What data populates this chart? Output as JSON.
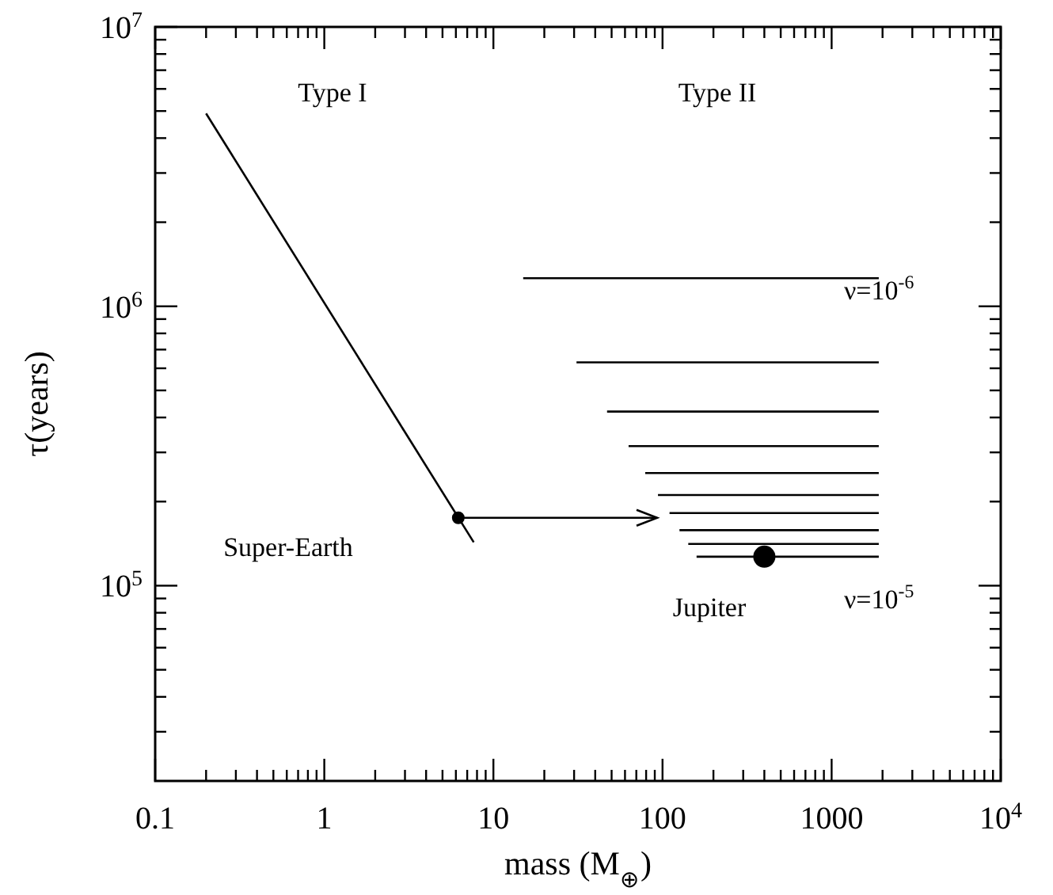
{
  "chart_data": {
    "type": "line",
    "xlabel": "mass (M$_{⊕}$)",
    "ylabel": "τ(years)",
    "log": "xy",
    "grid": false,
    "line_style": "solid",
    "xlim": [
      0.1,
      10000
    ],
    "ylim": [
      20000,
      10000000
    ],
    "xticks": [
      0.1,
      {
        "value": 0.2,
        "label": null
      },
      {
        "value": 0.3,
        "label": null
      },
      {
        "value": 0.4,
        "label": null
      },
      {
        "value": 0.5,
        "label": null
      },
      {
        "value": 0.6,
        "label": null
      },
      {
        "value": 0.7,
        "label": null
      },
      {
        "value": 0.8,
        "label": null
      },
      {
        "value": 0.9,
        "label": null
      },
      1,
      {
        "value": 2,
        "label": null
      },
      {
        "value": 3,
        "label": null
      },
      {
        "value": 4,
        "label": null
      },
      {
        "value": 5,
        "label": null
      },
      {
        "value": 6,
        "label": null
      },
      {
        "value": 7,
        "label": null
      },
      {
        "value": 8,
        "label": null
      },
      {
        "value": 9,
        "label": null
      },
      10,
      {
        "value": 20,
        "label": null
      },
      {
        "value": 30,
        "label": null
      },
      {
        "value": 40,
        "label": null
      },
      {
        "value": 50,
        "label": null
      },
      {
        "value": 60,
        "label": null
      },
      {
        "value": 70,
        "label": null
      },
      {
        "value": 80,
        "label": null
      },
      {
        "value": 90,
        "label": null
      },
      100,
      {
        "value": 200,
        "label": null
      },
      {
        "value": 300,
        "label": null
      },
      {
        "value": 400,
        "label": null
      },
      {
        "value": 500,
        "label": null
      },
      {
        "value": 600,
        "label": null
      },
      {
        "value": 700,
        "label": null
      },
      {
        "value": 800,
        "label": null
      },
      {
        "value": 900,
        "label": null
      },
      1000,
      {
        "value": 2000,
        "label": null
      },
      {
        "value": 3000,
        "label": null
      },
      {
        "value": 4000,
        "label": null
      },
      {
        "value": 5000,
        "label": null
      },
      {
        "value": 6000,
        "label": null
      },
      {
        "value": 7000,
        "label": null
      },
      {
        "value": 8000,
        "label": null
      },
      {
        "value": 9000,
        "label": null
      },
      {
        "value": 10000,
        "label": "10$^{4}$"
      }
    ],
    "yticks": [
      {
        "value": 30000,
        "label": null
      },
      {
        "value": 40000,
        "label": null
      },
      {
        "value": 50000,
        "label": null
      },
      {
        "value": 60000,
        "label": null
      },
      {
        "value": 70000,
        "label": null
      },
      {
        "value": 80000,
        "label": null
      },
      {
        "value": 90000,
        "label": null
      },
      {
        "value": 100000,
        "label": "10$^{5}$"
      },
      {
        "value": 200000,
        "label": null
      },
      {
        "value": 300000,
        "label": null
      },
      {
        "value": 400000,
        "label": null
      },
      {
        "value": 500000,
        "label": null
      },
      {
        "value": 600000,
        "label": null
      },
      {
        "value": 700000,
        "label": null
      },
      {
        "value": 800000,
        "label": null
      },
      {
        "value": 900000,
        "label": null
      },
      {
        "value": 1000000,
        "label": "10$^{6}$"
      },
      {
        "value": 2000000,
        "label": null
      },
      {
        "value": 3000000,
        "label": null
      },
      {
        "value": 4000000,
        "label": null
      },
      {
        "value": 5000000,
        "label": null
      },
      {
        "value": 6000000,
        "label": null
      },
      {
        "value": 7000000,
        "label": null
      },
      {
        "value": 8000000,
        "label": null
      },
      {
        "value": 9000000,
        "label": null
      },
      {
        "value": 10000000,
        "label": "10$^{7}$"
      }
    ],
    "series": [
      {
        "color": "#000000",
        "x": [
          0.2,
          7.65
        ],
        "values": [
          4900000,
          143000
        ]
      },
      {
        "color": "#000000",
        "x": [
          15,
          1900
        ],
        "values": [
          1260000,
          1260000
        ]
      },
      {
        "color": "#000000",
        "x": [
          31,
          1900
        ],
        "values": [
          630000,
          630000
        ]
      },
      {
        "color": "#000000",
        "x": [
          47,
          1900
        ],
        "values": [
          420000,
          420000
        ]
      },
      {
        "color": "#000000",
        "x": [
          63,
          1900
        ],
        "values": [
          316000,
          316000
        ]
      },
      {
        "color": "#000000",
        "x": [
          79,
          1900
        ],
        "values": [
          253000,
          253000
        ]
      },
      {
        "color": "#000000",
        "x": [
          94,
          1900
        ],
        "values": [
          211000,
          211000
        ]
      },
      {
        "color": "#000000",
        "x": [
          110,
          1900
        ],
        "values": [
          182000,
          182000
        ]
      },
      {
        "color": "#000000",
        "x": [
          126,
          1900
        ],
        "values": [
          158000,
          158000
        ]
      },
      {
        "color": "#000000",
        "x": [
          142,
          1900
        ],
        "values": [
          141000,
          141000
        ]
      },
      {
        "color": "#000000",
        "x": [
          159,
          1900
        ],
        "values": [
          127000,
          127000
        ]
      },
      {
        "type": "scatter",
        "color": "#000000",
        "marker": "circle",
        "x": [
          6.2
        ],
        "values": [
          175000
        ]
      },
      {
        "type": "scatter",
        "color": "#000000",
        "marker": "circle",
        "x": [
          400
        ],
        "values": [
          127000
        ]
      }
    ],
    "annotations": [
      "Type I",
      "Type II",
      "Super-Earth",
      "Jupiter",
      "ν=10$^{-6}$",
      "ν=10$^{-5}$"
    ]
  }
}
